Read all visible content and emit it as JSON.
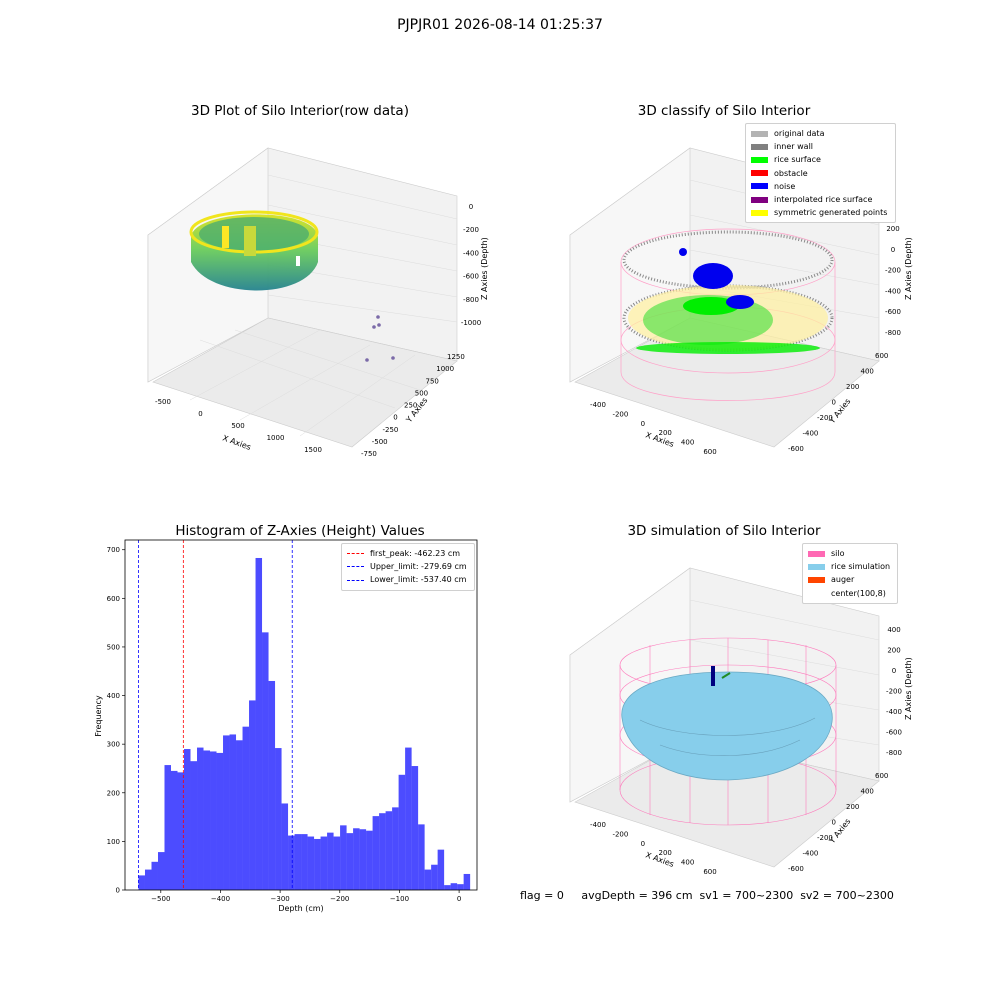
{
  "suptitle": "PJPJR01 2026-08-14 01:25:37",
  "footer": "flag = 0     avgDepth = 396 cm  sv1 = 700~2300  sv2 = 700~2300",
  "panels": {
    "raw": {
      "title": "3D Plot of Silo Interior(row data)",
      "xlabel": "X Axies",
      "ylabel": "Y Axies",
      "zlabel": "Z Axies (Depth)",
      "xticks": [
        "-500",
        "0",
        "500",
        "1000",
        "1500"
      ],
      "yticks": [
        "-750",
        "-500",
        "-250",
        "0",
        "250",
        "500",
        "750",
        "1000",
        "1250"
      ],
      "zticks": [
        "0",
        "-200",
        "-400",
        "-600",
        "-800",
        "-1000"
      ]
    },
    "classify": {
      "title": "3D classify of Silo Interior",
      "xlabel": "X Axies",
      "ylabel": "Y Axies",
      "zlabel": "Z Axies (Depth)",
      "xticks": [
        "-400",
        "-200",
        "0",
        "200",
        "400",
        "600"
      ],
      "yticks": [
        "-600",
        "-400",
        "-200",
        "0",
        "200",
        "400",
        "600"
      ],
      "zticks": [
        "200",
        "0",
        "-200",
        "-400",
        "-600",
        "-800"
      ],
      "legend": [
        {
          "label": "original data",
          "color": "#b3b3b3"
        },
        {
          "label": "inner wall",
          "color": "#808080"
        },
        {
          "label": "rice surface",
          "color": "#00ff00"
        },
        {
          "label": "obstacle",
          "color": "#ff0000"
        },
        {
          "label": "noise",
          "color": "#0000ff"
        },
        {
          "label": "interpolated rice surface",
          "color": "#800080"
        },
        {
          "label": "symmetric generated points",
          "color": "#ffff00"
        }
      ]
    },
    "simulation": {
      "title": "3D simulation of Silo Interior",
      "xlabel": "X Axies",
      "ylabel": "Y Axies",
      "zlabel": "Z Axies (Depth)",
      "xticks": [
        "-400",
        "-200",
        "0",
        "200",
        "400",
        "600"
      ],
      "yticks": [
        "-600",
        "-400",
        "-200",
        "0",
        "200",
        "400",
        "600"
      ],
      "zticks": [
        "400",
        "200",
        "0",
        "-200",
        "-400",
        "-600",
        "-800"
      ],
      "legend": [
        {
          "label": "silo",
          "color": "#ff69b4"
        },
        {
          "label": "rice simulation",
          "color": "#87ceeb"
        },
        {
          "label": "auger",
          "color": "#ff4500"
        },
        {
          "label": "center(100,8)",
          "color": ""
        }
      ]
    }
  },
  "chart_data": {
    "type": "bar",
    "title": "Histogram of Z-Axies (Height) Values",
    "xlabel": "Depth (cm)",
    "ylabel": "Frequency",
    "xlim": [
      -560,
      30
    ],
    "ylim": [
      0,
      720
    ],
    "xticks": [
      -500,
      -400,
      -300,
      -200,
      -100,
      0
    ],
    "yticks": [
      0,
      100,
      200,
      300,
      400,
      500,
      600,
      700
    ],
    "bin_start": -537.4,
    "bin_width": 10.9,
    "values": [
      30,
      42,
      58,
      78,
      257,
      245,
      242,
      290,
      265,
      293,
      287,
      285,
      282,
      318,
      320,
      308,
      336,
      390,
      683,
      530,
      430,
      292,
      178,
      112,
      115,
      115,
      110,
      105,
      110,
      118,
      110,
      133,
      117,
      127,
      125,
      122,
      152,
      158,
      162,
      170,
      237,
      293,
      255,
      135,
      42,
      52,
      83,
      10,
      14,
      12,
      33
    ],
    "bar_color": "#0000ff",
    "vlines": [
      {
        "label": "first_peak: -462.23 cm",
        "x": -462.23,
        "color": "#ff0000"
      },
      {
        "label": "Upper_limit: -279.69 cm",
        "x": -279.69,
        "color": "#0000ff"
      },
      {
        "label": "Lower_limit: -537.40 cm",
        "x": -537.4,
        "color": "#0000ff"
      }
    ],
    "legend_position": "top-right",
    "grid": false
  }
}
